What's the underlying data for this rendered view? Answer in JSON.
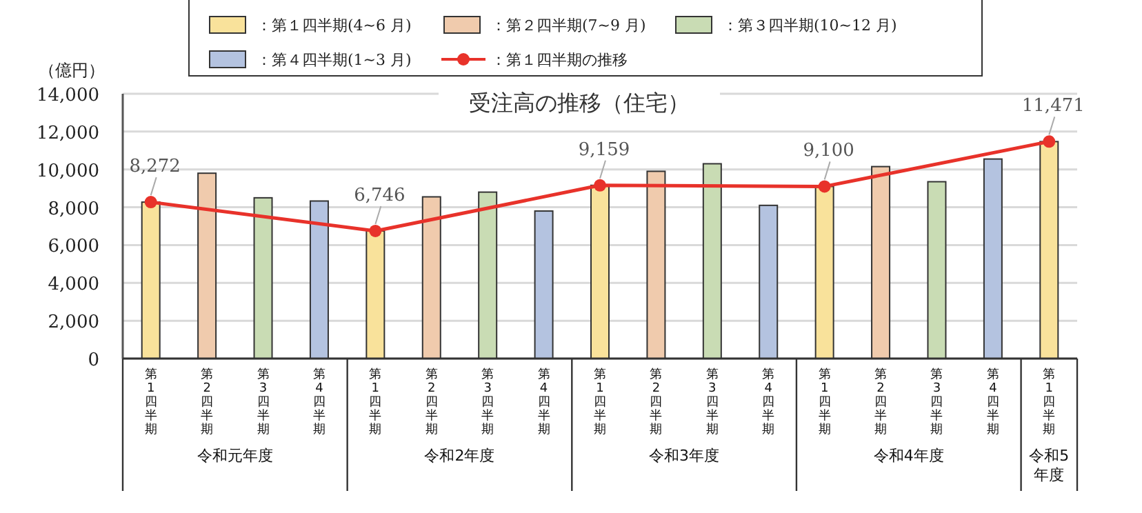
{
  "chart_data": {
    "type": "bar",
    "title": "受注高の推移（住宅）",
    "ylabel": "（億円）",
    "categories": [
      "第1四半期",
      "第2四半期",
      "第3四半期",
      "第4四半期",
      "第1四半期",
      "第2四半期",
      "第3四半期",
      "第4四半期",
      "第1四半期",
      "第2四半期",
      "第3四半期",
      "第4四半期",
      "第1四半期",
      "第2四半期",
      "第3四半期",
      "第4四半期",
      "第1四半期"
    ],
    "annotations": [
      "令和元年度",
      "令和2年度",
      "令和3年度",
      "令和4年度",
      "令和5年度"
    ],
    "series": [
      {
        "name": "：第１四半期(4~6 月)",
        "color": "#f9e29b",
        "values": [
          8272,
          null,
          null,
          null,
          6746,
          null,
          null,
          null,
          9159,
          null,
          null,
          null,
          9100,
          null,
          null,
          null,
          11471
        ]
      },
      {
        "name": "：第２四半期(7~9 月)",
        "color": "#f0cbad",
        "values": [
          null,
          9800,
          null,
          null,
          null,
          8550,
          null,
          null,
          null,
          9900,
          null,
          null,
          null,
          10150,
          null,
          null,
          null
        ]
      },
      {
        "name": "：第３四半期(10~12 月)",
        "color": "#c9dcb4",
        "values": [
          null,
          null,
          8500,
          null,
          null,
          null,
          8800,
          null,
          null,
          null,
          10300,
          null,
          null,
          null,
          9350,
          null,
          null
        ]
      },
      {
        "name": "：第４四半期(1~3 月)",
        "color": "#b4c3e0",
        "values": [
          null,
          null,
          null,
          8330,
          null,
          null,
          null,
          7800,
          null,
          null,
          null,
          8100,
          null,
          null,
          null,
          10550,
          null
        ]
      },
      {
        "name": "：第１四半期の推移",
        "type": "line",
        "color": "#e8322a",
        "marker": "circle",
        "values": [
          8272,
          null,
          null,
          null,
          6746,
          null,
          null,
          null,
          9159,
          null,
          null,
          null,
          9100,
          null,
          null,
          null,
          11471
        ],
        "value_labels": [
          "8,272",
          null,
          null,
          null,
          "6,746",
          null,
          null,
          null,
          "9,159",
          null,
          null,
          null,
          "9,100",
          null,
          null,
          null,
          "11,471"
        ]
      }
    ],
    "ylim": [
      0,
      14000
    ],
    "yticks": [
      {
        "value": 0,
        "label": "0"
      },
      {
        "value": 2000,
        "label": "2,000"
      },
      {
        "value": 4000,
        "label": "4,000"
      },
      {
        "value": 6000,
        "label": "6,000"
      },
      {
        "value": 8000,
        "label": "8,000"
      },
      {
        "value": 10000,
        "label": "10,000"
      },
      {
        "value": 12000,
        "label": "12,000"
      },
      {
        "value": 14000,
        "label": "14,000"
      }
    ],
    "grid": "y",
    "legend": "top"
  }
}
